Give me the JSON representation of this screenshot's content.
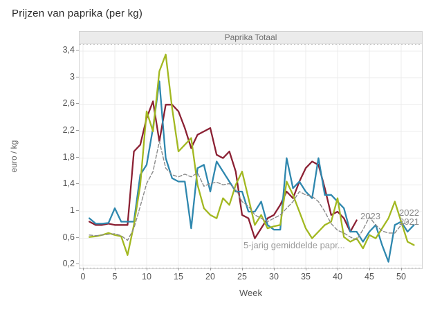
{
  "page": {
    "title": "Prijzen van paprika (per kg)"
  },
  "panel": {
    "title": "Paprika Totaal"
  },
  "axes": {
    "x_title": "Week",
    "y_title": "euro / kg"
  },
  "annotations": {
    "avg_series_label": "5-jarig gemiddelde papr...",
    "end_label_2023": "2023",
    "end_label_2022": "2022",
    "end_label_2021": "2021"
  },
  "colors": {
    "series_2023": "#8b2033",
    "series_2022": "#a2b820",
    "series_2021": "#2e87ae",
    "series_avg": "#8a8a8a",
    "grid": "#ececec",
    "panel_header_bg": "#ebebeb",
    "panel_border": "#d2d2d2"
  },
  "chart_data": {
    "type": "line",
    "title": "Paprika Totaal",
    "xlabel": "Week",
    "ylabel": "euro / kg",
    "xlim": [
      0,
      53.3
    ],
    "ylim": [
      0.2,
      3.4
    ],
    "grid": true,
    "xticks": {
      "values": [
        0,
        5,
        10,
        15,
        20,
        25,
        30,
        35,
        40,
        45,
        50
      ],
      "labels": [
        "0",
        "5",
        "10",
        "15",
        "20",
        "25",
        "30",
        "35",
        "40",
        "45",
        "50"
      ]
    },
    "yticks": {
      "values": [
        0.2,
        0.6,
        1.0,
        1.4,
        1.8,
        2.2,
        2.6,
        3.0,
        3.4
      ],
      "labels": [
        "0,2",
        "0,6",
        "1",
        "1,4",
        "1,8",
        "2,2",
        "2,6",
        "3",
        "3,4"
      ]
    },
    "series": [
      {
        "name": "2023",
        "color": "#8b2033",
        "style": "solid",
        "width": 2.3,
        "x": [
          1,
          2,
          3,
          4,
          5,
          6,
          7,
          8,
          9,
          10,
          11,
          12,
          13,
          14,
          15,
          16,
          17,
          18,
          19,
          20,
          21,
          22,
          23,
          24,
          25,
          26,
          27,
          28,
          29,
          30,
          31,
          32,
          33,
          34,
          35,
          36,
          37,
          38,
          39,
          40,
          41,
          42,
          43
        ],
        "values": [
          0.85,
          0.8,
          0.8,
          0.82,
          0.8,
          0.8,
          0.8,
          1.9,
          2.0,
          2.4,
          2.65,
          2.05,
          2.6,
          2.6,
          2.5,
          2.25,
          1.95,
          2.15,
          2.2,
          2.25,
          1.85,
          1.8,
          1.9,
          1.6,
          0.95,
          0.9,
          0.6,
          0.75,
          0.9,
          0.95,
          1.1,
          1.3,
          1.2,
          1.45,
          1.65,
          1.75,
          1.7,
          1.35,
          0.95,
          1.0,
          0.9,
          0.7,
          0.87
        ]
      },
      {
        "name": "2021",
        "color": "#2e87ae",
        "style": "solid",
        "width": 2.3,
        "x": [
          1,
          2,
          3,
          4,
          5,
          6,
          7,
          8,
          9,
          10,
          11,
          12,
          13,
          14,
          15,
          16,
          17,
          18,
          19,
          20,
          21,
          22,
          23,
          24,
          25,
          26,
          27,
          28,
          29,
          30,
          31,
          32,
          33,
          34,
          35,
          36,
          37,
          38,
          39,
          40,
          41,
          42,
          43,
          44,
          45,
          46,
          47,
          48,
          49,
          50,
          51,
          52
        ],
        "values": [
          0.9,
          0.82,
          0.82,
          0.83,
          1.05,
          0.85,
          0.85,
          0.85,
          1.55,
          1.7,
          2.25,
          2.95,
          1.8,
          1.5,
          1.45,
          1.45,
          0.75,
          1.65,
          1.7,
          1.3,
          1.75,
          1.6,
          1.45,
          1.3,
          1.3,
          1.0,
          1.0,
          1.15,
          0.8,
          0.73,
          0.73,
          1.8,
          1.35,
          1.45,
          1.3,
          1.2,
          1.8,
          1.25,
          1.25,
          1.15,
          1.05,
          0.7,
          0.7,
          0.55,
          0.7,
          0.8,
          0.5,
          0.25,
          0.8,
          0.85,
          0.7,
          0.8
        ]
      },
      {
        "name": "2022",
        "color": "#a2b820",
        "style": "solid",
        "width": 2.3,
        "x": [
          1,
          2,
          3,
          4,
          5,
          6,
          7,
          8,
          9,
          10,
          11,
          12,
          13,
          14,
          15,
          16,
          17,
          18,
          19,
          20,
          21,
          22,
          23,
          24,
          25,
          26,
          27,
          28,
          29,
          30,
          31,
          32,
          33,
          34,
          35,
          36,
          37,
          38,
          39,
          40,
          41,
          42,
          43,
          44,
          45,
          46,
          47,
          48,
          49,
          50,
          51,
          52
        ],
        "values": [
          0.62,
          0.63,
          0.65,
          0.68,
          0.65,
          0.63,
          0.35,
          0.8,
          1.4,
          2.5,
          2.2,
          3.1,
          3.35,
          2.55,
          1.9,
          2.0,
          2.1,
          1.4,
          1.05,
          0.95,
          0.9,
          1.2,
          1.1,
          1.4,
          1.6,
          1.2,
          0.8,
          0.95,
          0.75,
          0.78,
          0.8,
          1.45,
          1.25,
          1.0,
          0.75,
          0.6,
          0.7,
          0.8,
          0.85,
          1.2,
          0.62,
          0.55,
          0.6,
          0.45,
          0.65,
          0.6,
          0.75,
          0.9,
          1.15,
          0.85,
          0.55,
          0.5
        ]
      },
      {
        "name": "5-jarig gemiddelde paprika",
        "color": "#8a8a8a",
        "style": "dashed",
        "width": 1.4,
        "x": [
          1,
          2,
          3,
          4,
          5,
          6,
          7,
          8,
          9,
          10,
          11,
          12,
          13,
          14,
          15,
          16,
          17,
          18,
          19,
          20,
          21,
          22,
          23,
          24,
          25,
          26,
          27,
          28,
          29,
          30,
          31,
          32,
          33,
          34,
          35,
          36,
          37,
          38,
          39,
          40,
          41,
          42,
          43,
          44,
          45,
          46,
          47,
          48,
          49,
          50,
          51
        ],
        "values": [
          0.65,
          0.64,
          0.65,
          0.66,
          0.67,
          0.64,
          0.57,
          0.75,
          1.08,
          1.42,
          1.6,
          2.05,
          1.65,
          1.55,
          1.52,
          1.56,
          1.52,
          1.58,
          1.38,
          1.42,
          1.44,
          1.4,
          1.42,
          1.33,
          1.15,
          1.08,
          0.95,
          0.9,
          0.85,
          0.9,
          0.95,
          1.05,
          1.15,
          1.3,
          1.25,
          1.23,
          1.15,
          1.0,
          0.82,
          0.72,
          0.68,
          0.62,
          0.58,
          0.73,
          0.92,
          0.8,
          0.71,
          0.68,
          0.68,
          0.8,
          0.85
        ]
      }
    ]
  }
}
